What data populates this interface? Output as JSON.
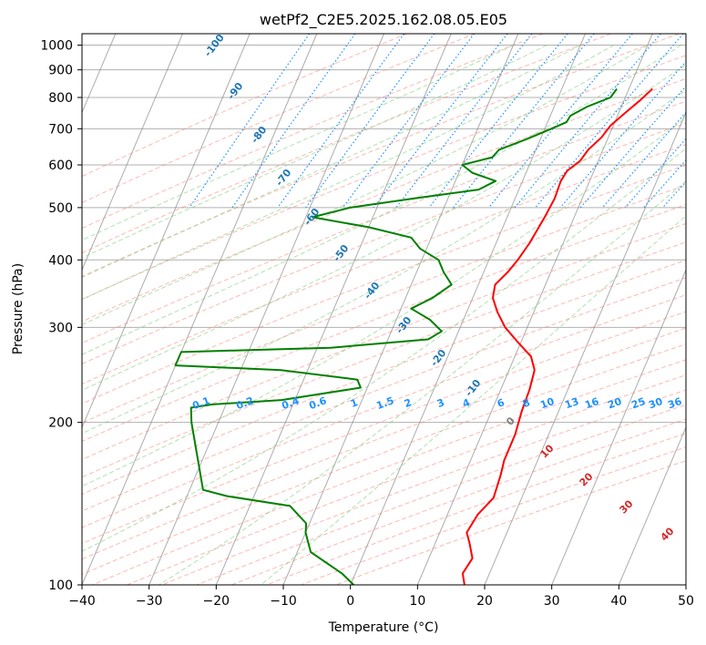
{
  "chart_data": {
    "type": "line",
    "title": "wetPf2_C2E5.2025.162.08.05.E05",
    "xlabel": "Temperature (°C)",
    "ylabel": "Pressure (hPa)",
    "xlim": [
      -40,
      50
    ],
    "ylim": [
      1050,
      100
    ],
    "y_scale": "log",
    "x_ticks": [
      -40,
      -30,
      -20,
      -10,
      0,
      10,
      20,
      30,
      40,
      50
    ],
    "y_ticks": [
      100,
      200,
      300,
      400,
      500,
      600,
      700,
      800,
      900,
      1000
    ],
    "grid": true,
    "series": [
      {
        "color": "#ff0000",
        "points": [
          {
            "p": 830,
            "t": 13.5
          },
          {
            "p": 790,
            "t": 12.4
          },
          {
            "p": 750,
            "t": 11.0
          },
          {
            "p": 710,
            "t": 9.6
          },
          {
            "p": 675,
            "t": 9.0
          },
          {
            "p": 640,
            "t": 7.8
          },
          {
            "p": 610,
            "t": 7.3
          },
          {
            "p": 585,
            "t": 6.0
          },
          {
            "p": 560,
            "t": 5.7
          },
          {
            "p": 520,
            "t": 5.9
          },
          {
            "p": 480,
            "t": 5.6
          },
          {
            "p": 430,
            "t": 5.0
          },
          {
            "p": 400,
            "t": 4.3
          },
          {
            "p": 380,
            "t": 3.6
          },
          {
            "p": 360,
            "t": 2.5
          },
          {
            "p": 340,
            "t": 3.0
          },
          {
            "p": 320,
            "t": 4.6
          },
          {
            "p": 300,
            "t": 6.7
          },
          {
            "p": 280,
            "t": 9.8
          },
          {
            "p": 265,
            "t": 12.4
          },
          {
            "p": 250,
            "t": 13.8
          },
          {
            "p": 230,
            "t": 14.3
          },
          {
            "p": 210,
            "t": 14.5
          },
          {
            "p": 190,
            "t": 15.0
          },
          {
            "p": 170,
            "t": 15.0
          },
          {
            "p": 160,
            "t": 15.4
          },
          {
            "p": 145,
            "t": 15.8
          },
          {
            "p": 135,
            "t": 14.5
          },
          {
            "p": 125,
            "t": 14.0
          },
          {
            "p": 120,
            "t": 15.0
          },
          {
            "p": 112,
            "t": 16.5
          },
          {
            "p": 105,
            "t": 16.0
          },
          {
            "p": 100,
            "t": 17.0
          }
        ]
      },
      {
        "color": "#008000",
        "points": [
          {
            "p": 830,
            "t": 8.2
          },
          {
            "p": 800,
            "t": 7.8
          },
          {
            "p": 770,
            "t": 5.0
          },
          {
            "p": 740,
            "t": 3.0
          },
          {
            "p": 720,
            "t": 2.8
          },
          {
            "p": 700,
            "t": 1.0
          },
          {
            "p": 670,
            "t": -2.0
          },
          {
            "p": 640,
            "t": -5.5
          },
          {
            "p": 620,
            "t": -6.0
          },
          {
            "p": 600,
            "t": -10.0
          },
          {
            "p": 580,
            "t": -8.0
          },
          {
            "p": 560,
            "t": -4.0
          },
          {
            "p": 540,
            "t": -6.0
          },
          {
            "p": 520,
            "t": -15.0
          },
          {
            "p": 500,
            "t": -24.0
          },
          {
            "p": 480,
            "t": -29.0
          },
          {
            "p": 460,
            "t": -20.0
          },
          {
            "p": 440,
            "t": -13.0
          },
          {
            "p": 420,
            "t": -11.0
          },
          {
            "p": 400,
            "t": -7.5
          },
          {
            "p": 380,
            "t": -6.0
          },
          {
            "p": 360,
            "t": -4.0
          },
          {
            "p": 340,
            "t": -6.0
          },
          {
            "p": 325,
            "t": -8.5
          },
          {
            "p": 310,
            "t": -5.0
          },
          {
            "p": 295,
            "t": -2.5
          },
          {
            "p": 285,
            "t": -4.0
          },
          {
            "p": 275,
            "t": -18.0
          },
          {
            "p": 272,
            "t": -31.0
          },
          {
            "p": 270,
            "t": -40.0
          },
          {
            "p": 255,
            "t": -40.0
          },
          {
            "p": 250,
            "t": -24.0
          },
          {
            "p": 240,
            "t": -12.0
          },
          {
            "p": 232,
            "t": -11.0
          },
          {
            "p": 220,
            "t": -22.0
          },
          {
            "p": 216,
            "t": -32.0
          },
          {
            "p": 213,
            "t": -35.0
          },
          {
            "p": 200,
            "t": -34.0
          },
          {
            "p": 150,
            "t": -28.0
          },
          {
            "p": 146,
            "t": -24.0
          },
          {
            "p": 140,
            "t": -14.0
          },
          {
            "p": 130,
            "t": -10.5
          },
          {
            "p": 125,
            "t": -10.0
          },
          {
            "p": 115,
            "t": -8.0
          },
          {
            "p": 105,
            "t": -2.0
          },
          {
            "p": 100,
            "t": 0.5
          }
        ]
      }
    ],
    "dry_adiabat_labels": [
      "-100",
      "-90",
      "-80",
      "-70",
      "-60",
      "-50",
      "-40",
      "-30",
      "-20",
      "-10"
    ],
    "dry_adiabat_label_values": [
      -100,
      -90,
      -80,
      -70,
      -60,
      -50,
      -40,
      -30,
      -20,
      -10
    ],
    "mixing_ratio_labels": [
      "0.1",
      "0.2",
      "0.4",
      "0.6",
      "1",
      "1.5",
      "2",
      "3",
      "4",
      "6",
      "8",
      "10",
      "13",
      "16",
      "20",
      "25",
      "30",
      "36"
    ],
    "mixing_ratio_values": [
      0.1,
      0.2,
      0.4,
      0.6,
      1,
      1.5,
      2,
      3,
      4,
      6,
      8,
      10,
      13,
      16,
      20,
      25,
      30,
      36
    ],
    "moist_adiabat_labels": [
      "0",
      "10",
      "20",
      "30",
      "40"
    ],
    "moist_adiabat_values": [
      0,
      10,
      20,
      30,
      40
    ],
    "colors": {
      "temperature": "#ff0000",
      "dewpoint": "#008000",
      "dry_adiabat": "#fa8072",
      "moist_adiabat": "#7ccd7c",
      "mixing_ratio": "#1e90ff",
      "isotherm": "#808080",
      "dry_label": "#1f77b4",
      "moist_label_zero": "#808080",
      "moist_label": "#d62728"
    }
  }
}
